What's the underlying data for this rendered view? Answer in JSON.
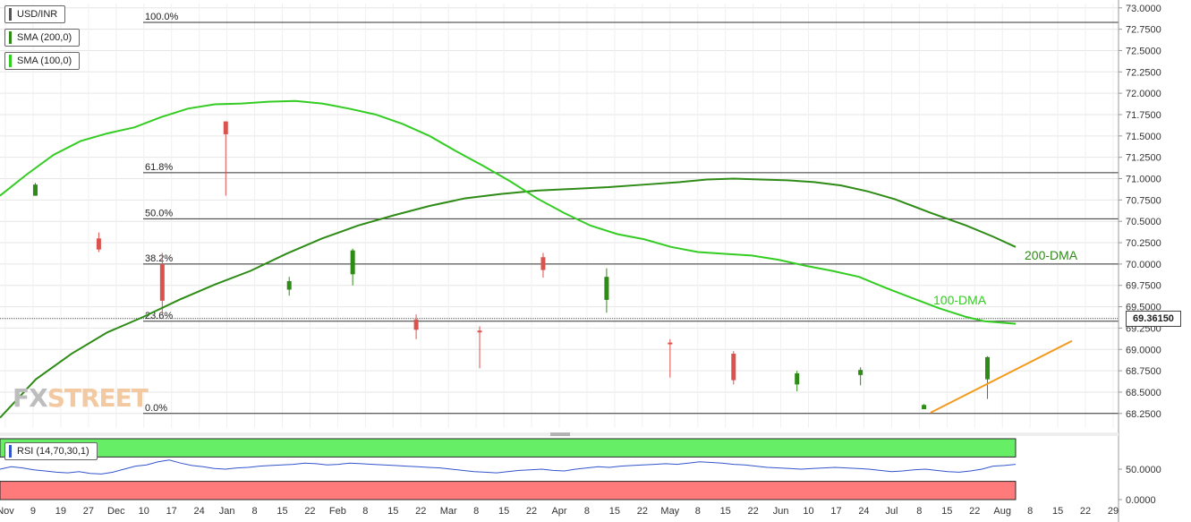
{
  "chart_data": {
    "type": "candlestick",
    "symbol": "USD/INR",
    "indicators": [
      {
        "label": "SMA (200,0)",
        "color": "#2e8b16"
      },
      {
        "label": "SMA (100,0)",
        "color": "#33cc22"
      }
    ],
    "ylim": [
      68.0,
      73.1
    ],
    "y_ticks": [
      "73.0000",
      "72.7500",
      "72.5000",
      "72.2500",
      "72.0000",
      "71.7500",
      "71.5000",
      "71.2500",
      "71.0000",
      "70.7500",
      "70.5000",
      "70.2500",
      "70.0000",
      "69.7500",
      "69.5000",
      "69.2500",
      "69.0000",
      "68.7500",
      "68.5000",
      "68.2500"
    ],
    "x_ticks": [
      "Nov",
      "9",
      "19",
      "27",
      "Dec",
      "10",
      "17",
      "24",
      "Jan",
      "8",
      "15",
      "22",
      "Feb",
      "8",
      "15",
      "22",
      "Mar",
      "8",
      "15",
      "22",
      "Apr",
      "8",
      "15",
      "22",
      "May",
      "8",
      "15",
      "22",
      "Jun",
      "10",
      "17",
      "24",
      "Jul",
      "8",
      "15",
      "22",
      "Aug",
      "8",
      "15",
      "22",
      "29"
    ],
    "current_price": "69.36150",
    "fib_levels": [
      {
        "label": "100.0%",
        "value": 72.83
      },
      {
        "label": "61.8%",
        "value": 71.07
      },
      {
        "label": "50.0%",
        "value": 70.53
      },
      {
        "label": "38.2%",
        "value": 70.0
      },
      {
        "label": "23.6%",
        "value": 69.33
      },
      {
        "label": "0.0%",
        "value": 68.25
      }
    ],
    "annotations": {
      "dma100": "100-DMA",
      "dma200": "200-DMA"
    },
    "series": [
      {
        "name": "SMA (200,0)",
        "color": "#2e8b16",
        "points": [
          [
            0,
            68.2
          ],
          [
            40,
            68.65
          ],
          [
            80,
            68.95
          ],
          [
            120,
            69.2
          ],
          [
            160,
            69.38
          ],
          [
            200,
            69.58
          ],
          [
            240,
            69.76
          ],
          [
            280,
            69.92
          ],
          [
            320,
            70.12
          ],
          [
            360,
            70.3
          ],
          [
            400,
            70.45
          ],
          [
            440,
            70.57
          ],
          [
            480,
            70.68
          ],
          [
            520,
            70.77
          ],
          [
            560,
            70.82
          ],
          [
            600,
            70.86
          ],
          [
            640,
            70.88
          ],
          [
            680,
            70.9
          ],
          [
            720,
            70.93
          ],
          [
            760,
            70.96
          ],
          [
            790,
            70.99
          ],
          [
            820,
            71.0
          ],
          [
            850,
            70.99
          ],
          [
            880,
            70.98
          ],
          [
            910,
            70.96
          ],
          [
            940,
            70.92
          ],
          [
            970,
            70.85
          ],
          [
            1000,
            70.76
          ],
          [
            1040,
            70.6
          ],
          [
            1080,
            70.45
          ],
          [
            1110,
            70.32
          ],
          [
            1135,
            70.2
          ]
        ]
      },
      {
        "name": "SMA (100,0)",
        "color": "#33cc22",
        "points": [
          [
            0,
            70.8
          ],
          [
            30,
            71.05
          ],
          [
            60,
            71.28
          ],
          [
            90,
            71.44
          ],
          [
            120,
            71.53
          ],
          [
            150,
            71.6
          ],
          [
            180,
            71.72
          ],
          [
            210,
            71.82
          ],
          [
            240,
            71.87
          ],
          [
            270,
            71.88
          ],
          [
            300,
            71.9
          ],
          [
            330,
            71.91
          ],
          [
            360,
            71.88
          ],
          [
            390,
            71.82
          ],
          [
            420,
            71.75
          ],
          [
            450,
            71.64
          ],
          [
            480,
            71.5
          ],
          [
            510,
            71.32
          ],
          [
            540,
            71.15
          ],
          [
            570,
            70.97
          ],
          [
            600,
            70.77
          ],
          [
            630,
            70.6
          ],
          [
            660,
            70.45
          ],
          [
            690,
            70.35
          ],
          [
            720,
            70.29
          ],
          [
            750,
            70.2
          ],
          [
            780,
            70.14
          ],
          [
            810,
            70.12
          ],
          [
            840,
            70.1
          ],
          [
            870,
            70.05
          ],
          [
            900,
            69.98
          ],
          [
            930,
            69.92
          ],
          [
            960,
            69.85
          ],
          [
            990,
            69.72
          ],
          [
            1020,
            69.6
          ],
          [
            1050,
            69.48
          ],
          [
            1080,
            69.38
          ],
          [
            1100,
            69.33
          ],
          [
            1135,
            69.3
          ]
        ]
      },
      {
        "name": "support-trendline",
        "color": "#f29b1e",
        "points": [
          [
            1040,
            68.26
          ],
          [
            1198,
            69.1
          ]
        ]
      }
    ],
    "candles": [
      [
        70.8,
        70.93,
        70.95,
        70.8
      ],
      [
        70.3,
        70.17,
        70.37,
        70.14
      ],
      [
        70.0,
        69.57,
        70.13,
        69.41
      ],
      [
        71.67,
        71.52,
        71.67,
        70.8
      ],
      [
        69.7,
        69.8,
        69.85,
        69.63
      ],
      [
        69.88,
        70.16,
        70.18,
        69.75
      ],
      [
        69.35,
        69.23,
        69.41,
        69.12
      ],
      [
        69.22,
        69.2,
        69.27,
        68.78
      ],
      [
        70.08,
        69.93,
        70.13,
        69.84
      ],
      [
        69.58,
        69.85,
        69.95,
        69.43
      ],
      [
        69.08,
        69.06,
        69.12,
        68.67
      ],
      [
        68.95,
        68.64,
        68.98,
        68.59
      ],
      [
        68.59,
        68.72,
        68.75,
        68.51
      ],
      [
        68.7,
        68.76,
        68.79,
        68.58
      ],
      [
        68.3,
        68.35,
        68.36,
        68.3
      ],
      [
        68.65,
        68.91,
        68.92,
        68.42
      ]
    ],
    "rsi": {
      "label": "RSI (14,70,30,1)",
      "overbought": 70,
      "oversold": 30,
      "ticks": [
        "50.0000",
        "0.0000"
      ],
      "values": [
        50,
        54,
        52,
        49,
        47,
        45,
        44,
        46,
        43,
        42,
        45,
        50,
        55,
        57,
        62,
        65,
        60,
        56,
        54,
        51,
        50,
        52,
        53,
        55,
        56,
        57,
        58,
        60,
        59,
        57,
        58,
        60,
        59,
        58,
        57,
        56,
        55,
        54,
        53,
        52,
        50,
        48,
        46,
        45,
        44,
        46,
        48,
        49,
        50,
        48,
        47,
        50,
        52,
        54,
        53,
        55,
        56,
        57,
        58,
        59,
        58,
        60,
        62,
        61,
        60,
        58,
        57,
        55,
        53,
        52,
        51,
        50,
        51,
        52,
        53,
        52,
        51,
        50,
        48,
        46,
        47,
        49,
        50,
        48,
        46,
        45,
        47,
        50,
        55,
        56,
        58
      ]
    }
  }
}
